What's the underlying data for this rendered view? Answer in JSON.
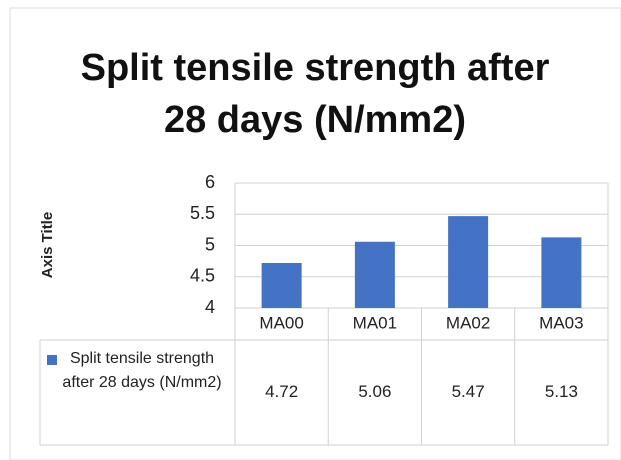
{
  "chart_data": {
    "type": "bar",
    "title": "Split tensile strength after 28 days (N/mm2)",
    "y_axis_label": "Axis Title",
    "categories": [
      "MA00",
      "MA01",
      "MA02",
      "MA03"
    ],
    "series": [
      {
        "name": "Split tensile strength after 28 days (N/mm2)",
        "color": "#4472c4",
        "values": [
          4.72,
          5.06,
          5.47,
          5.13
        ]
      }
    ],
    "ylim": [
      4,
      6
    ],
    "yticks": [
      4,
      4.5,
      5,
      5.5,
      6
    ],
    "grid": true
  }
}
